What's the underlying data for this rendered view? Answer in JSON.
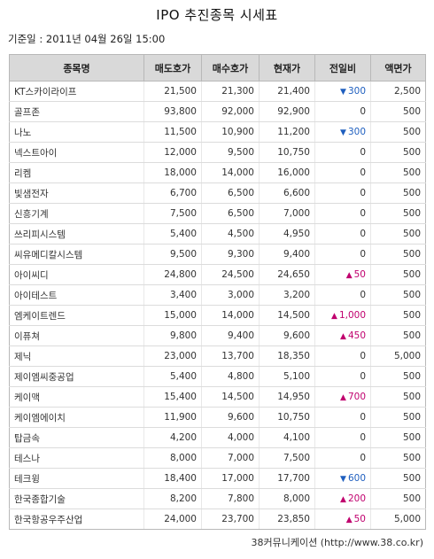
{
  "title": "IPO 추진종목 시세표",
  "base_date": "기준일 : 2011년 04월 26일 15:00",
  "table": {
    "headers": [
      "종목명",
      "매도호가",
      "매수호가",
      "현재가",
      "전일비",
      "액면가"
    ],
    "rows": [
      {
        "name": "KT스카이라이프",
        "ask": "21,500",
        "bid": "21,300",
        "price": "21,400",
        "dir": "down",
        "change": "300",
        "par": "2,500"
      },
      {
        "name": "골프존",
        "ask": "93,800",
        "bid": "92,000",
        "price": "92,900",
        "dir": "none",
        "change": "0",
        "par": "500"
      },
      {
        "name": "나노",
        "ask": "11,500",
        "bid": "10,900",
        "price": "11,200",
        "dir": "down",
        "change": "300",
        "par": "500"
      },
      {
        "name": "넥스트아이",
        "ask": "12,000",
        "bid": "9,500",
        "price": "10,750",
        "dir": "none",
        "change": "0",
        "par": "500"
      },
      {
        "name": "리켐",
        "ask": "18,000",
        "bid": "14,000",
        "price": "16,000",
        "dir": "none",
        "change": "0",
        "par": "500"
      },
      {
        "name": "빛샘전자",
        "ask": "6,700",
        "bid": "6,500",
        "price": "6,600",
        "dir": "none",
        "change": "0",
        "par": "500"
      },
      {
        "name": "신흥기계",
        "ask": "7,500",
        "bid": "6,500",
        "price": "7,000",
        "dir": "none",
        "change": "0",
        "par": "500"
      },
      {
        "name": "쓰리피시스템",
        "ask": "5,400",
        "bid": "4,500",
        "price": "4,950",
        "dir": "none",
        "change": "0",
        "par": "500"
      },
      {
        "name": "씨유메디칼시스템",
        "ask": "9,500",
        "bid": "9,300",
        "price": "9,400",
        "dir": "none",
        "change": "0",
        "par": "500"
      },
      {
        "name": "아이씨디",
        "ask": "24,800",
        "bid": "24,500",
        "price": "24,650",
        "dir": "up",
        "change": "50",
        "par": "500"
      },
      {
        "name": "아이테스트",
        "ask": "3,400",
        "bid": "3,000",
        "price": "3,200",
        "dir": "none",
        "change": "0",
        "par": "500"
      },
      {
        "name": "엠케이트렌드",
        "ask": "15,000",
        "bid": "14,000",
        "price": "14,500",
        "dir": "up",
        "change": "1,000",
        "par": "500"
      },
      {
        "name": "이퓨쳐",
        "ask": "9,800",
        "bid": "9,400",
        "price": "9,600",
        "dir": "up",
        "change": "450",
        "par": "500"
      },
      {
        "name": "제닉",
        "ask": "23,000",
        "bid": "13,700",
        "price": "18,350",
        "dir": "none",
        "change": "0",
        "par": "5,000"
      },
      {
        "name": "제이엠씨중공업",
        "ask": "5,400",
        "bid": "4,800",
        "price": "5,100",
        "dir": "none",
        "change": "0",
        "par": "500"
      },
      {
        "name": "케이맥",
        "ask": "15,400",
        "bid": "14,500",
        "price": "14,950",
        "dir": "up",
        "change": "700",
        "par": "500"
      },
      {
        "name": "케이엠에이치",
        "ask": "11,900",
        "bid": "9,600",
        "price": "10,750",
        "dir": "none",
        "change": "0",
        "par": "500"
      },
      {
        "name": "탑금속",
        "ask": "4,200",
        "bid": "4,000",
        "price": "4,100",
        "dir": "none",
        "change": "0",
        "par": "500"
      },
      {
        "name": "테스나",
        "ask": "8,000",
        "bid": "7,000",
        "price": "7,500",
        "dir": "none",
        "change": "0",
        "par": "500"
      },
      {
        "name": "테크윙",
        "ask": "18,400",
        "bid": "17,000",
        "price": "17,700",
        "dir": "down",
        "change": "600",
        "par": "500"
      },
      {
        "name": "한국종합기술",
        "ask": "8,200",
        "bid": "7,800",
        "price": "8,000",
        "dir": "up",
        "change": "200",
        "par": "500"
      },
      {
        "name": "한국항공우주산업",
        "ask": "24,000",
        "bid": "23,700",
        "price": "23,850",
        "dir": "up",
        "change": "50",
        "par": "5,000"
      }
    ]
  },
  "source": "38커뮤니케이션 (http://www.38.co.kr)",
  "colors": {
    "up": "#c0006e",
    "down": "#1f5fbf",
    "header_bg": "#d9d9d9"
  }
}
